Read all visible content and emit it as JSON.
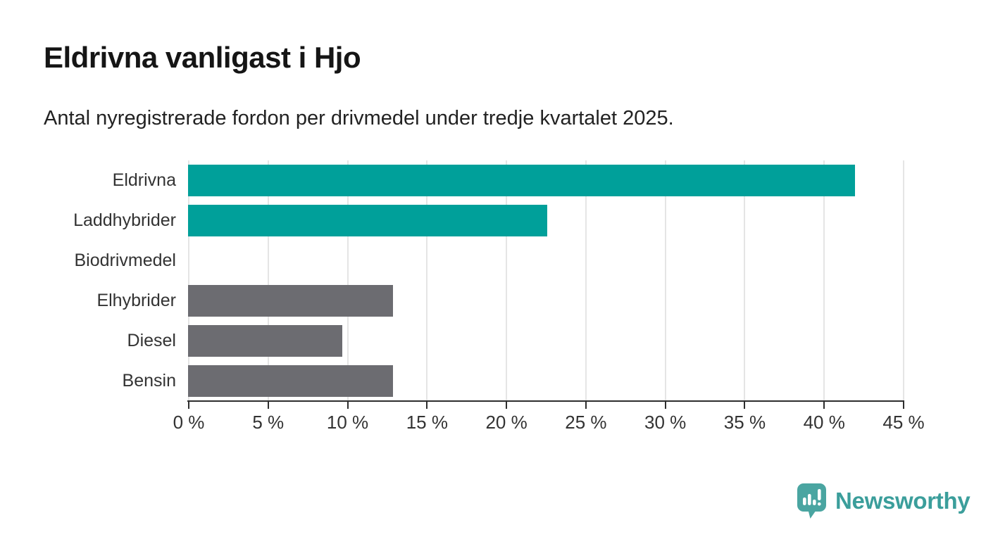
{
  "title": "Eldrivna vanligast i Hjo",
  "subtitle": "Antal nyregistrerade fordon per drivmedel under tredje kvartalet 2025.",
  "chart_data": {
    "type": "bar",
    "orientation": "horizontal",
    "title": "Eldrivna vanligast i Hjo",
    "subtitle": "Antal nyregistrerade fordon per drivmedel under tredje kvartalet 2025.",
    "categories": [
      "Eldrivna",
      "Laddhybrider",
      "Biodrivmedel",
      "Elhybrider",
      "Diesel",
      "Bensin"
    ],
    "values": [
      42,
      22.6,
      0,
      12.9,
      9.7,
      12.9
    ],
    "bar_colors": [
      "#00a09a",
      "#00a09a",
      "#00a09a",
      "#6c6c71",
      "#6c6c71",
      "#6c6c71"
    ],
    "unit": "%",
    "xlim": [
      0,
      45
    ],
    "tick_step": 5,
    "x_tick_labels": [
      "0 %",
      "5 %",
      "10 %",
      "15 %",
      "20 %",
      "25 %",
      "30 %",
      "35 %",
      "40 %",
      "45 %"
    ],
    "grid": true,
    "legend": false
  },
  "colors": {
    "highlight": "#00a09a",
    "muted": "#6c6c71",
    "grid": "#e5e5e5",
    "axis": "#2e2e2e",
    "text": "#333333",
    "title": "#151515",
    "subtitle": "#222222",
    "logo": "#4aa5a1",
    "logoText": "#3b9e9b"
  },
  "branding": {
    "name": "Newsworthy",
    "icon": "newsworthy-logo-icon"
  }
}
